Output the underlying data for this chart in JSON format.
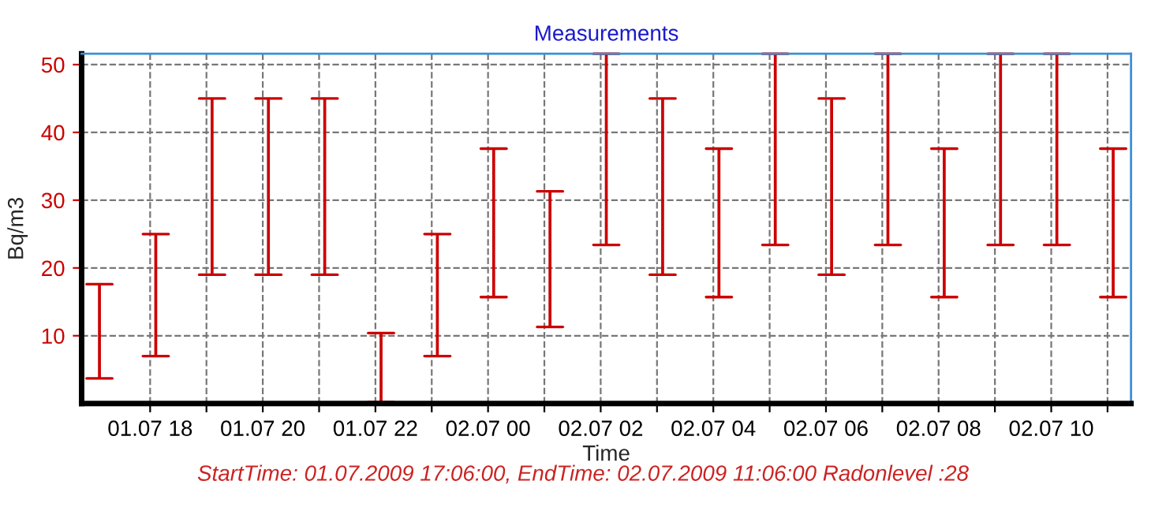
{
  "chart_data": {
    "type": "bar",
    "title": "Measurements",
    "xlabel": "Time",
    "ylabel": "Bq/m3",
    "annotations": [
      "StartTime: 01.07.2009 17:06:00, EndTime: 02.07.2009 11:06:00 Radonlevel :28"
    ],
    "x": [
      "2009-07-01T17:06",
      "2009-07-01T18:06",
      "2009-07-01T19:06",
      "2009-07-01T20:06",
      "2009-07-01T21:06",
      "2009-07-01T22:06",
      "2009-07-01T23:06",
      "2009-07-02T00:06",
      "2009-07-02T01:06",
      "2009-07-02T02:06",
      "2009-07-02T03:06",
      "2009-07-02T04:06",
      "2009-07-02T05:06",
      "2009-07-02T06:06",
      "2009-07-02T07:06",
      "2009-07-02T08:06",
      "2009-07-02T09:06",
      "2009-07-02T10:06",
      "2009-07-02T11:06"
    ],
    "base": [
      3.7,
      7,
      19,
      19,
      19,
      0.2,
      7,
      15.7,
      11.3,
      23.4,
      19,
      15.7,
      23.4,
      19,
      23.4,
      15.7,
      23.4,
      23.4,
      15.7
    ],
    "values": [
      13.9,
      18,
      26,
      26,
      26,
      10.2,
      18,
      21.9,
      20,
      28.2,
      26,
      21.9,
      28.2,
      26,
      28.2,
      21.9,
      28.2,
      28.2,
      21.9
    ],
    "color": "#cc0000",
    "xlim": [
      "2009-07-01T16:47",
      "2009-07-02T11:25"
    ],
    "xticks": [
      {
        "value": "2009-07-01T18:00",
        "label": "01.07 18"
      },
      {
        "value": "2009-07-01T19:00",
        "label": null
      },
      {
        "value": "2009-07-01T20:00",
        "label": "01.07 20"
      },
      {
        "value": "2009-07-01T21:00",
        "label": null
      },
      {
        "value": "2009-07-01T22:00",
        "label": "01.07 22"
      },
      {
        "value": "2009-07-01T23:00",
        "label": null
      },
      {
        "value": "2009-07-02T00:00",
        "label": "02.07 00"
      },
      {
        "value": "2009-07-02T01:00",
        "label": null
      },
      {
        "value": "2009-07-02T02:00",
        "label": "02.07 02"
      },
      {
        "value": "2009-07-02T03:00",
        "label": null
      },
      {
        "value": "2009-07-02T04:00",
        "label": "02.07 04"
      },
      {
        "value": "2009-07-02T05:00",
        "label": null
      },
      {
        "value": "2009-07-02T06:00",
        "label": "02.07 06"
      },
      {
        "value": "2009-07-02T07:00",
        "label": null
      },
      {
        "value": "2009-07-02T08:00",
        "label": "02.07 08"
      },
      {
        "value": "2009-07-02T09:00",
        "label": null
      },
      {
        "value": "2009-07-02T10:00",
        "label": "02.07 10"
      },
      {
        "value": "2009-07-02T11:00",
        "label": null
      }
    ],
    "ylim": [
      0,
      51.6
    ],
    "yticks": [
      10,
      20,
      30,
      40,
      50
    ],
    "grid": true,
    "line_style": "dashed"
  }
}
